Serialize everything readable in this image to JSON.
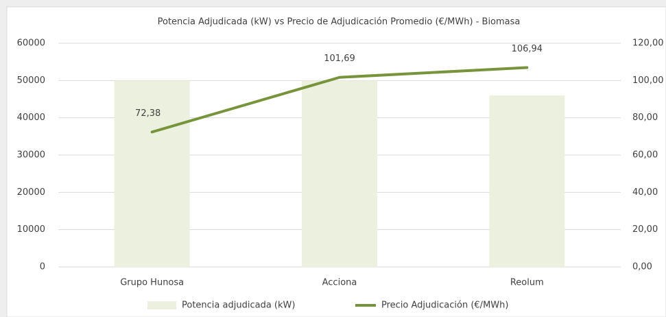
{
  "chart_data": {
    "type": "combo",
    "title": "Potencia Adjudicada (kW) vs Precio de Adjudicación Promedio (€/MWh) - Biomasa",
    "categories": [
      "Grupo Hunosa",
      "Acciona",
      "Reolum"
    ],
    "series": [
      {
        "name": "Potencia adjudicada (kW)",
        "type": "bar",
        "color": "#ebf1de",
        "values": [
          50000,
          50000,
          46000
        ]
      },
      {
        "name": "Precio Adjudicación (€/MWh)",
        "type": "line",
        "axis": "y2",
        "color": "#77933c",
        "values": [
          72.38,
          101.69,
          106.94
        ],
        "value_labels": [
          "72,38",
          "101,69",
          "106,94"
        ]
      }
    ],
    "ylim": [
      0,
      60000
    ],
    "yticks": [
      0,
      10000,
      20000,
      30000,
      40000,
      50000,
      60000
    ],
    "y2lim": [
      0,
      120
    ],
    "y2ticks": [
      {
        "value": 0,
        "label": "0,00"
      },
      {
        "value": 20,
        "label": "20,00"
      },
      {
        "value": 40,
        "label": "40,00"
      },
      {
        "value": 60,
        "label": "60,00"
      },
      {
        "value": 80,
        "label": "80,00"
      },
      {
        "value": 100,
        "label": "100,00"
      },
      {
        "value": 120,
        "label": "120,00"
      }
    ],
    "grid": true,
    "legend": "bottom"
  }
}
